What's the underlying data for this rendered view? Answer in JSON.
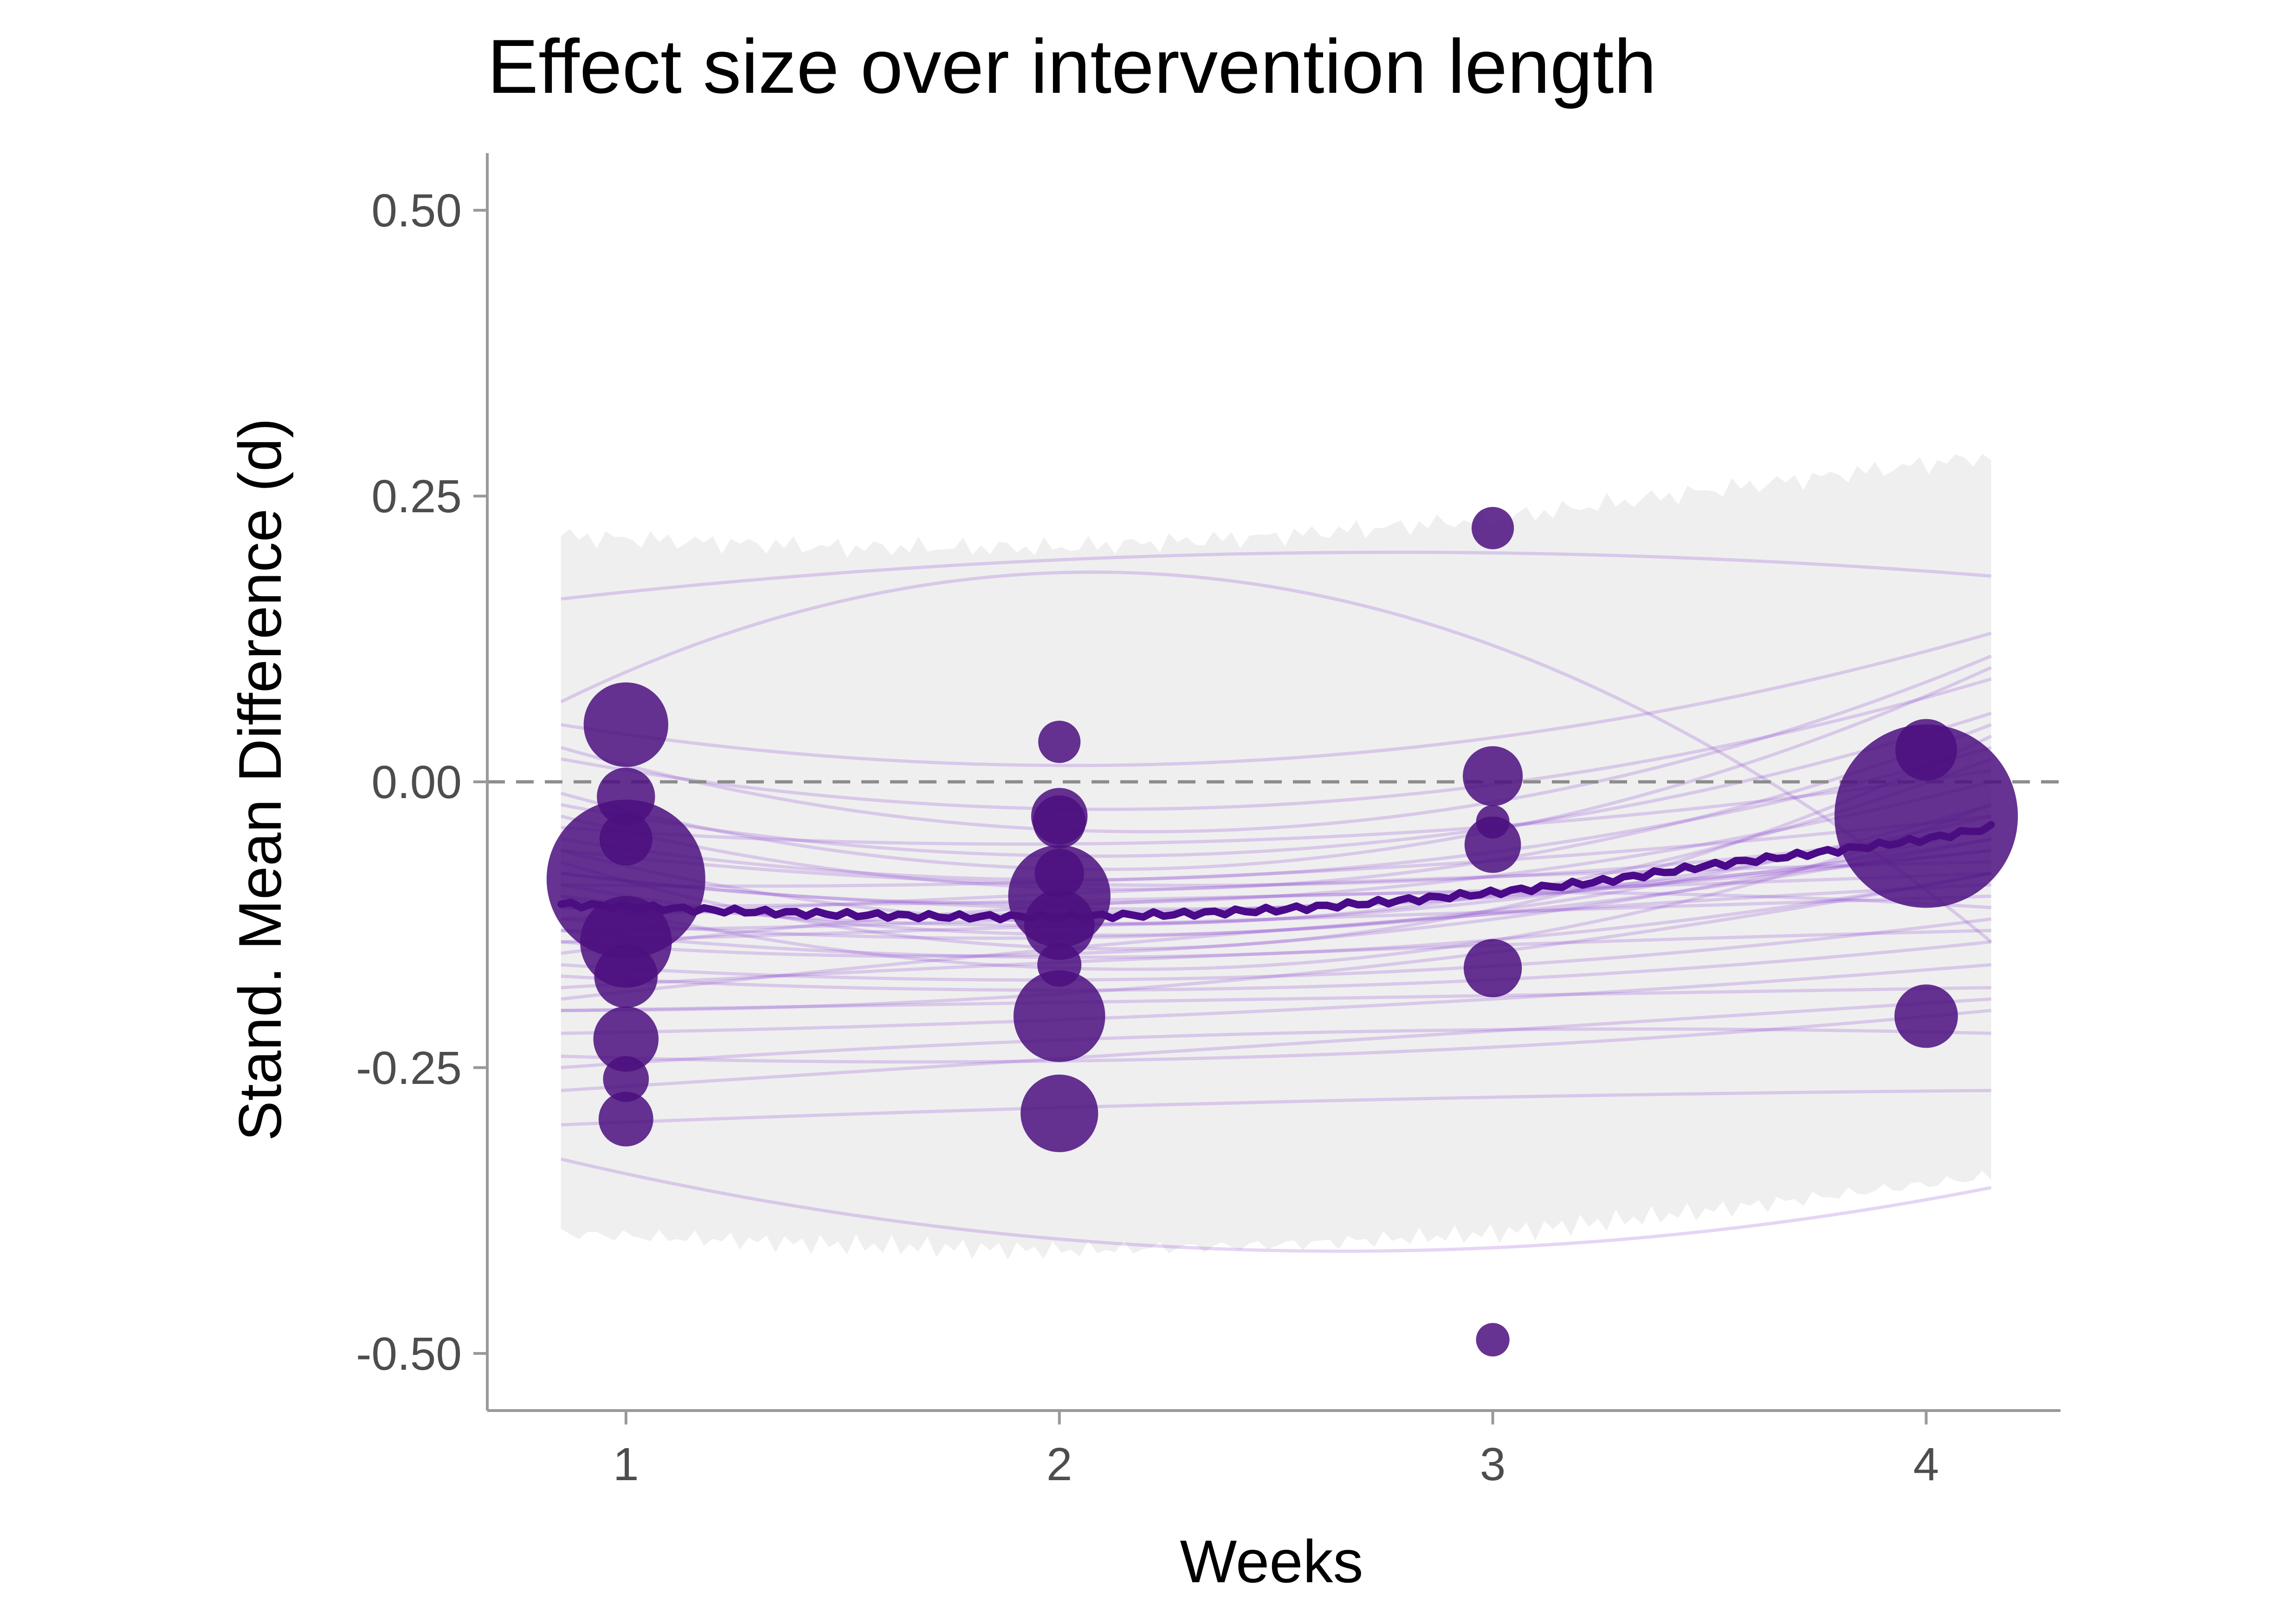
{
  "chart_data": {
    "type": "scatter",
    "title": "Effect size over intervention length",
    "xlabel": "Weeks",
    "ylabel": "Stand. Mean Difference (d)",
    "xlim": [
      0.68,
      4.31
    ],
    "ylim": [
      -0.55,
      0.55
    ],
    "x_ticks": [
      1,
      2,
      3,
      4
    ],
    "x_tick_labels": [
      "1",
      "2",
      "3",
      "4"
    ],
    "y_ticks": [
      0.5,
      0.25,
      0.0,
      -0.25,
      -0.5
    ],
    "y_tick_labels": [
      "0.50",
      "0.25",
      "0.00",
      "-0.25",
      "-0.50"
    ],
    "reference_line_y": 0.0,
    "grid": false,
    "legend": "none",
    "colors": {
      "points": "#4b0f7f",
      "mean_line": "#4a0a8a",
      "draws": "#8a3fd1",
      "interval_band": "#efefef",
      "reference_line": "#8c8c8c",
      "axis": "#999999"
    },
    "interval_band": {
      "x": [
        0.85,
        1.5,
        2.0,
        2.5,
        3.0,
        3.5,
        4.15
      ],
      "lower": [
        -0.395,
        -0.405,
        -0.41,
        -0.405,
        -0.395,
        -0.375,
        -0.345
      ],
      "upper": [
        0.215,
        0.205,
        0.205,
        0.215,
        0.23,
        0.255,
        0.285
      ]
    },
    "mean_line": {
      "x": [
        0.85,
        1.25,
        1.5,
        1.75,
        2.0,
        2.25,
        2.5,
        2.75,
        3.0,
        3.25,
        3.5,
        3.75,
        4.0,
        4.15
      ],
      "y": [
        -0.107,
        -0.113,
        -0.116,
        -0.118,
        -0.118,
        -0.116,
        -0.112,
        -0.105,
        -0.097,
        -0.087,
        -0.073,
        -0.062,
        -0.05,
        -0.04
      ]
    },
    "draws": {
      "x_range": [
        0.85,
        4.15
      ],
      "curves": [
        {
          "start": 0.16,
          "mid": 0.2,
          "end": 0.18
        },
        {
          "start": -0.33,
          "mid": -0.41,
          "end": -0.355
        },
        {
          "start": 0.07,
          "mid": 0.17,
          "end": -0.14
        },
        {
          "start": 0.05,
          "mid": 0.02,
          "end": 0.13
        },
        {
          "start": -0.3,
          "mid": -0.28,
          "end": -0.27
        },
        {
          "start": 0.02,
          "mid": -0.02,
          "end": 0.09
        },
        {
          "start": -0.25,
          "mid": -0.22,
          "end": -0.22
        },
        {
          "start": -0.02,
          "mid": -0.06,
          "end": 0.06
        },
        {
          "start": -0.2,
          "mid": -0.19,
          "end": -0.18
        },
        {
          "start": -0.05,
          "mid": -0.08,
          "end": 0.03
        },
        {
          "start": -0.16,
          "mid": -0.17,
          "end": -0.12
        },
        {
          "start": -0.08,
          "mid": -0.1,
          "end": 0.0
        },
        {
          "start": -0.13,
          "mid": -0.15,
          "end": -0.08
        },
        {
          "start": -0.1,
          "mid": -0.12,
          "end": -0.03
        },
        {
          "start": -0.11,
          "mid": -0.11,
          "end": -0.06
        },
        {
          "start": -0.12,
          "mid": -0.13,
          "end": -0.05
        },
        {
          "start": -0.09,
          "mid": -0.13,
          "end": -0.02
        },
        {
          "start": -0.14,
          "mid": -0.12,
          "end": -0.1
        },
        {
          "start": -0.06,
          "mid": -0.09,
          "end": -0.04
        },
        {
          "start": -0.18,
          "mid": -0.15,
          "end": -0.13
        },
        {
          "start": -0.04,
          "mid": -0.05,
          "end": 0.01
        },
        {
          "start": -0.22,
          "mid": -0.2,
          "end": -0.16
        },
        {
          "start": -0.07,
          "mid": -0.14,
          "end": 0.04
        },
        {
          "start": -0.15,
          "mid": -0.1,
          "end": -0.11
        },
        {
          "start": -0.01,
          "mid": -0.07,
          "end": 0.1
        },
        {
          "start": -0.27,
          "mid": -0.23,
          "end": -0.19
        },
        {
          "start": -0.1,
          "mid": -0.16,
          "end": -0.02
        },
        {
          "start": -0.12,
          "mid": -0.09,
          "end": -0.07
        },
        {
          "start": -0.19,
          "mid": -0.13,
          "end": -0.09
        },
        {
          "start": 0.03,
          "mid": -0.04,
          "end": 0.11
        },
        {
          "start": -0.08,
          "mid": -0.11,
          "end": -0.05
        },
        {
          "start": -0.14,
          "mid": -0.14,
          "end": -0.04
        },
        {
          "start": -0.11,
          "mid": -0.1,
          "end": -0.08
        },
        {
          "start": -0.17,
          "mid": -0.18,
          "end": -0.14
        },
        {
          "start": -0.06,
          "mid": -0.12,
          "end": 0.02
        },
        {
          "start": -0.13,
          "mid": -0.11,
          "end": -0.06
        },
        {
          "start": -0.09,
          "mid": -0.08,
          "end": -0.03
        },
        {
          "start": -0.2,
          "mid": -0.17,
          "end": -0.08
        },
        {
          "start": -0.03,
          "mid": -0.09,
          "end": 0.05
        },
        {
          "start": -0.24,
          "mid": -0.24,
          "end": -0.2
        }
      ]
    },
    "points": [
      {
        "x": 1,
        "y": 0.05,
        "size": 4.8
      },
      {
        "x": 1,
        "y": -0.013,
        "size": 3.3
      },
      {
        "x": 1,
        "y": -0.05,
        "size": 3.0
      },
      {
        "x": 1,
        "y": -0.085,
        "size": 9.0
      },
      {
        "x": 1,
        "y": -0.14,
        "size": 5.2
      },
      {
        "x": 1,
        "y": -0.17,
        "size": 3.6
      },
      {
        "x": 1,
        "y": -0.225,
        "size": 3.7
      },
      {
        "x": 1,
        "y": -0.26,
        "size": 2.6
      },
      {
        "x": 1,
        "y": -0.295,
        "size": 3.1
      },
      {
        "x": 2,
        "y": 0.035,
        "size": 2.4
      },
      {
        "x": 2,
        "y": -0.03,
        "size": 3.2
      },
      {
        "x": 2,
        "y": -0.035,
        "size": 3.0
      },
      {
        "x": 2,
        "y": -0.08,
        "size": 2.8
      },
      {
        "x": 2,
        "y": -0.1,
        "size": 5.8
      },
      {
        "x": 2,
        "y": -0.125,
        "size": 4.0
      },
      {
        "x": 2,
        "y": -0.16,
        "size": 2.5
      },
      {
        "x": 2,
        "y": -0.205,
        "size": 5.2
      },
      {
        "x": 2,
        "y": -0.29,
        "size": 4.4
      },
      {
        "x": 3,
        "y": 0.222,
        "size": 2.4
      },
      {
        "x": 3,
        "y": 0.005,
        "size": 3.4
      },
      {
        "x": 3,
        "y": -0.035,
        "size": 1.9
      },
      {
        "x": 3,
        "y": -0.055,
        "size": 3.2
      },
      {
        "x": 3,
        "y": -0.163,
        "size": 3.3
      },
      {
        "x": 3,
        "y": -0.488,
        "size": 1.9
      },
      {
        "x": 4,
        "y": 0.028,
        "size": 3.5
      },
      {
        "x": 4,
        "y": -0.03,
        "size": 10.4
      },
      {
        "x": 4,
        "y": -0.205,
        "size": 3.6
      }
    ]
  }
}
